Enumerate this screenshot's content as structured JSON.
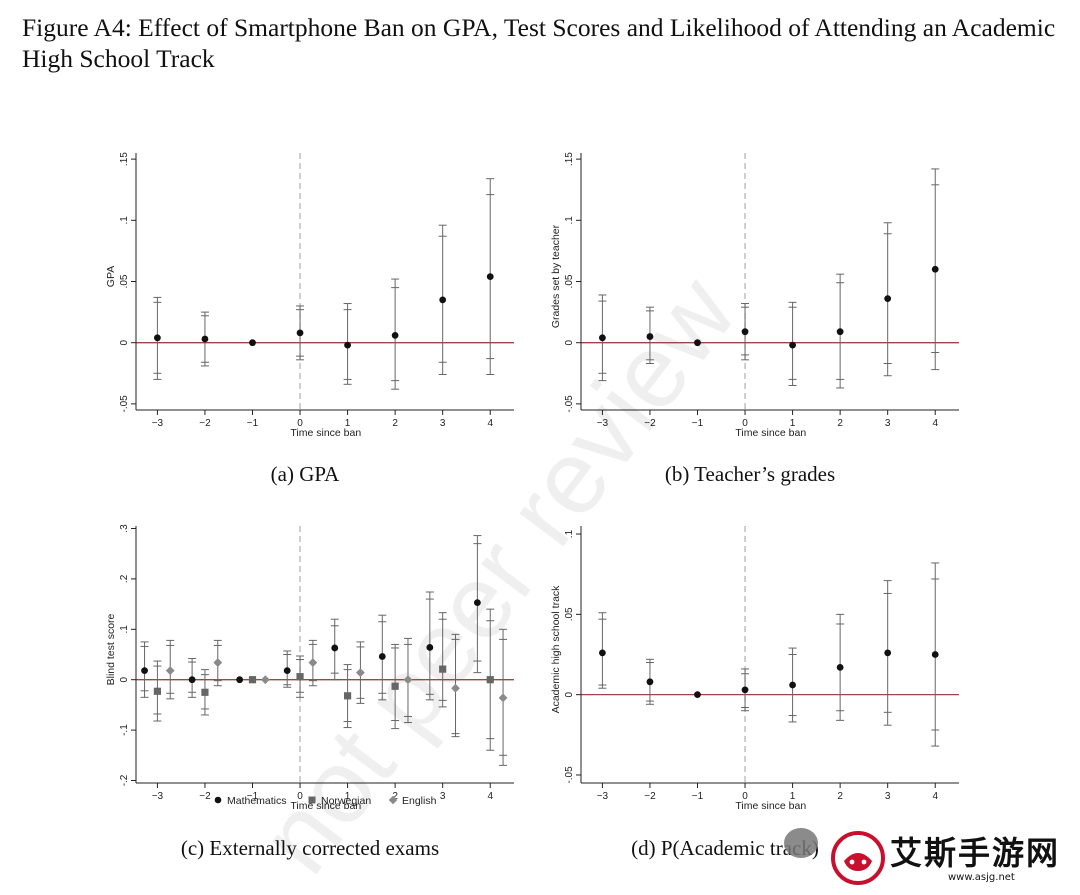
{
  "figure_title": "Figure A4: Effect of Smartphone Ban on GPA, Test Scores and Likelihood of Attending an Academic High School Track",
  "watermark": "not peer review",
  "logo": {
    "text": "艾斯手游网",
    "url": "www.asjg.net",
    "icon": "game-controller-icon"
  },
  "colors": {
    "zero_line": "#a04545",
    "axis": "#222222",
    "ci": "#666666",
    "dash": "#b0b0b0",
    "math": "#111111",
    "norwegian": "#666666",
    "english": "#8a8a8a"
  },
  "chart_data": [
    {
      "type": "scatter",
      "caption": "(a) GPA",
      "xlabel": "Time since ban",
      "ylabel": "GPA",
      "x": [
        -3,
        -2,
        -1,
        0,
        1,
        2,
        3,
        4
      ],
      "xlim": [
        -3.45,
        4.5
      ],
      "ylim": [
        -0.055,
        0.155
      ],
      "yticks": [
        -0.05,
        0,
        0.05,
        0.1,
        0.15
      ],
      "ytick_labels": [
        "-.05",
        "0",
        ".05",
        ".1",
        ".15"
      ],
      "xtick_labels": [
        "−3",
        "−2",
        "−1",
        "0",
        "1",
        "2",
        "3",
        "4"
      ],
      "event_line_x": 0,
      "series": [
        {
          "estimates": [
            0.004,
            0.003,
            0.0,
            0.008,
            -0.002,
            0.006,
            0.035,
            0.054
          ],
          "ci90": [
            [
              -0.025,
              0.033
            ],
            [
              -0.016,
              0.022
            ],
            null,
            [
              -0.011,
              0.027
            ],
            [
              -0.03,
              0.027
            ],
            [
              -0.031,
              0.045
            ],
            [
              -0.016,
              0.087
            ],
            [
              -0.013,
              0.121
            ]
          ],
          "ci95": [
            [
              -0.03,
              0.037
            ],
            [
              -0.019,
              0.025
            ],
            null,
            [
              -0.014,
              0.03
            ],
            [
              -0.034,
              0.032
            ],
            [
              -0.038,
              0.052
            ],
            [
              -0.026,
              0.096
            ],
            [
              -0.026,
              0.134
            ]
          ]
        }
      ]
    },
    {
      "type": "scatter",
      "caption": "(b) Teacher’s grades",
      "xlabel": "Time since ban",
      "ylabel": "Grades set by teacher",
      "x": [
        -3,
        -2,
        -1,
        0,
        1,
        2,
        3,
        4
      ],
      "xlim": [
        -3.45,
        4.5
      ],
      "ylim": [
        -0.055,
        0.155
      ],
      "yticks": [
        -0.05,
        0,
        0.05,
        0.1,
        0.15
      ],
      "ytick_labels": [
        "-.05",
        "0",
        ".05",
        ".1",
        ".15"
      ],
      "xtick_labels": [
        "−3",
        "−2",
        "−1",
        "0",
        "1",
        "2",
        "3",
        "4"
      ],
      "event_line_x": 0,
      "series": [
        {
          "estimates": [
            0.004,
            0.005,
            0.0,
            0.009,
            -0.002,
            0.009,
            0.036,
            0.06
          ],
          "ci90": [
            [
              -0.025,
              0.034
            ],
            [
              -0.014,
              0.026
            ],
            null,
            [
              -0.01,
              0.029
            ],
            [
              -0.03,
              0.029
            ],
            [
              -0.03,
              0.049
            ],
            [
              -0.017,
              0.089
            ],
            [
              -0.008,
              0.129
            ]
          ],
          "ci95": [
            [
              -0.031,
              0.039
            ],
            [
              -0.017,
              0.029
            ],
            null,
            [
              -0.014,
              0.032
            ],
            [
              -0.035,
              0.033
            ],
            [
              -0.037,
              0.056
            ],
            [
              -0.027,
              0.098
            ],
            [
              -0.022,
              0.142
            ]
          ]
        }
      ]
    },
    {
      "type": "scatter",
      "caption": "(c) Externally corrected exams",
      "xlabel": "Time since ban",
      "ylabel": "Blind test score",
      "x": [
        -3,
        -2,
        -1,
        0,
        1,
        2,
        3,
        4
      ],
      "xlim": [
        -3.45,
        4.5
      ],
      "ylim": [
        -0.205,
        0.305
      ],
      "yticks": [
        -0.2,
        -0.1,
        0,
        0.1,
        0.2,
        0.3
      ],
      "ytick_labels": [
        "-.2",
        "-.1",
        "0",
        ".1",
        ".2",
        ".3"
      ],
      "xtick_labels": [
        "−3",
        "−2",
        "−1",
        "0",
        "1",
        "2",
        "3",
        "4"
      ],
      "event_line_x": 0,
      "legend_position": "bottom",
      "series": [
        {
          "name": "Mathematics",
          "offset": -0.27,
          "marker": "circle",
          "estimates": [
            0.018,
            0.0,
            0.0,
            0.018,
            0.063,
            0.046,
            0.064,
            0.153
          ],
          "ci90": [
            [
              -0.022,
              0.066
            ],
            [
              -0.025,
              0.035
            ],
            null,
            [
              -0.01,
              0.05
            ],
            [
              0.013,
              0.107
            ],
            [
              -0.027,
              0.115
            ],
            [
              -0.029,
              0.16
            ],
            [
              0.037,
              0.27
            ]
          ],
          "ci95": [
            [
              -0.035,
              0.075
            ],
            [
              -0.035,
              0.042
            ],
            null,
            [
              -0.015,
              0.057
            ],
            [
              0.0,
              0.12
            ],
            [
              -0.04,
              0.128
            ],
            [
              -0.04,
              0.174
            ],
            [
              0.014,
              0.286
            ]
          ]
        },
        {
          "name": "Norwegian",
          "offset": 0.0,
          "marker": "square",
          "estimates": [
            -0.023,
            -0.025,
            0.0,
            0.006,
            -0.032,
            -0.013,
            0.021,
            0.0
          ],
          "ci90": [
            [
              -0.068,
              0.027
            ],
            [
              -0.058,
              0.01
            ],
            null,
            [
              -0.025,
              0.04
            ],
            [
              -0.083,
              0.02
            ],
            [
              -0.081,
              0.063
            ],
            [
              -0.041,
              0.12
            ],
            [
              -0.117,
              0.117
            ]
          ],
          "ci95": [
            [
              -0.082,
              0.037
            ],
            [
              -0.07,
              0.02
            ],
            null,
            [
              -0.035,
              0.047
            ],
            [
              -0.095,
              0.03
            ],
            [
              -0.097,
              0.07
            ],
            [
              -0.054,
              0.133
            ],
            [
              -0.14,
              0.14
            ]
          ]
        },
        {
          "name": "English",
          "offset": 0.27,
          "marker": "diamond",
          "estimates": [
            0.018,
            0.034,
            0.0,
            0.034,
            0.014,
            0.0,
            -0.017,
            -0.036
          ],
          "ci90": [
            [
              -0.027,
              0.068
            ],
            [
              -0.002,
              0.068
            ],
            null,
            [
              -0.002,
              0.07
            ],
            [
              -0.037,
              0.065
            ],
            [
              -0.073,
              0.07
            ],
            [
              -0.107,
              0.08
            ],
            [
              -0.15,
              0.08
            ]
          ],
          "ci95": [
            [
              -0.038,
              0.078
            ],
            [
              -0.012,
              0.078
            ],
            null,
            [
              -0.012,
              0.078
            ],
            [
              -0.047,
              0.075
            ],
            [
              -0.085,
              0.082
            ],
            [
              -0.113,
              0.09
            ],
            [
              -0.17,
              0.1
            ]
          ]
        }
      ]
    },
    {
      "type": "scatter",
      "caption": "(d) P(Academic track)",
      "xlabel": "Time since ban",
      "ylabel": "Academic high school track",
      "x": [
        -3,
        -2,
        -1,
        0,
        1,
        2,
        3,
        4
      ],
      "xlim": [
        -3.45,
        4.5
      ],
      "ylim": [
        -0.055,
        0.105
      ],
      "yticks": [
        -0.05,
        0,
        0.05,
        0.1
      ],
      "ytick_labels": [
        "-.05",
        "0",
        ".05",
        ".1"
      ],
      "xtick_labels": [
        "−3",
        "−2",
        "−1",
        "0",
        "1",
        "2",
        "3",
        "4"
      ],
      "event_line_x": 0,
      "series": [
        {
          "estimates": [
            0.026,
            0.008,
            0.0,
            0.003,
            0.006,
            0.017,
            0.026,
            0.025
          ],
          "ci90": [
            [
              0.006,
              0.047
            ],
            [
              -0.004,
              0.02
            ],
            null,
            [
              -0.008,
              0.013
            ],
            [
              -0.013,
              0.025
            ],
            [
              -0.01,
              0.044
            ],
            [
              -0.011,
              0.063
            ],
            [
              -0.022,
              0.072
            ]
          ],
          "ci95": [
            [
              0.004,
              0.051
            ],
            [
              -0.006,
              0.022
            ],
            null,
            [
              -0.01,
              0.016
            ],
            [
              -0.017,
              0.029
            ],
            [
              -0.016,
              0.05
            ],
            [
              -0.019,
              0.071
            ],
            [
              -0.032,
              0.082
            ]
          ]
        }
      ]
    }
  ]
}
